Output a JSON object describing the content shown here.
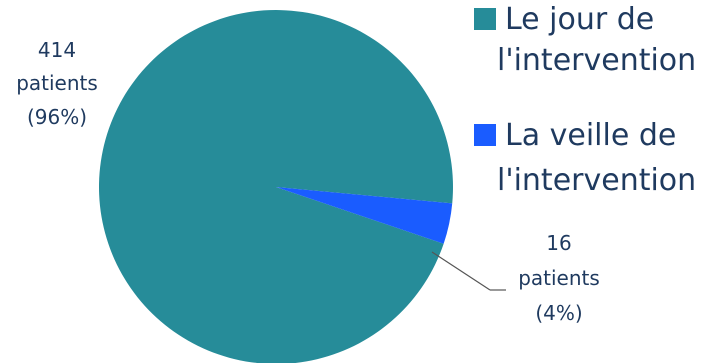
{
  "chart_data": {
    "type": "pie",
    "title": "",
    "categories": [
      "Le jour de l'intervention",
      "La veille de l'intervention"
    ],
    "values": [
      414,
      16
    ],
    "percent_labels": [
      "96%",
      "4%"
    ],
    "colors": [
      "#268c99",
      "#1a5cff"
    ],
    "data_labels": [
      {
        "count": "414",
        "unit": "patients",
        "pct": "(96%)"
      },
      {
        "count": "16",
        "unit": "patients",
        "pct": "(4%)"
      }
    ],
    "legend": {
      "placement": "right",
      "entries": [
        {
          "line1": "Le jour de",
          "line2": "l'intervention"
        },
        {
          "line1": "La veille de",
          "line2": "l'intervention"
        }
      ]
    }
  }
}
